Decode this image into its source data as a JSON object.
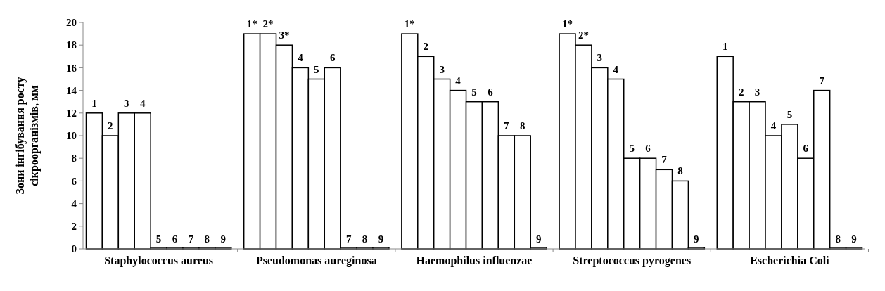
{
  "chart_data": {
    "type": "bar",
    "ylabel": "Зони інгібування росту сікроорганізмів, мм",
    "categories": [
      "Staphylococcus aureus",
      "Pseudomonas aureginosa",
      "Haemophilus influenzae",
      "Streptococcus pyrogenes",
      "Escherichia Coli"
    ],
    "ylim": [
      0,
      20
    ],
    "yticks": [
      0,
      2,
      4,
      6,
      8,
      10,
      12,
      14,
      16,
      18,
      20
    ],
    "grid": false,
    "series": [
      {
        "color": "#ffffff",
        "values": [
          12,
          19,
          19,
          19,
          17
        ]
      },
      {
        "color": "#ffffff",
        "values": [
          10,
          19,
          17,
          18,
          13
        ]
      },
      {
        "color": "#ffffff",
        "values": [
          12,
          18,
          15,
          16,
          13
        ]
      },
      {
        "color": "#ffffff",
        "values": [
          12,
          16,
          14,
          15,
          10
        ]
      },
      {
        "color": "#ffffff",
        "values": [
          0,
          15,
          13,
          8,
          11
        ]
      },
      {
        "color": "#ffffff",
        "values": [
          0,
          16,
          13,
          8,
          8
        ]
      },
      {
        "color": "#ffffff",
        "values": [
          0,
          0,
          10,
          7,
          14
        ]
      },
      {
        "color": "#ffffff",
        "values": [
          0,
          0,
          10,
          6,
          0
        ]
      },
      {
        "color": "#ffffff",
        "values": [
          0,
          0,
          0,
          0,
          0
        ]
      }
    ],
    "annotations": [
      "1",
      "2",
      "3",
      "4",
      "5",
      "6",
      "7",
      "8",
      "9",
      "1*",
      "2*",
      "3*",
      "4",
      "5",
      "6",
      "7",
      "8",
      "9",
      "1*",
      "2",
      "3",
      "4",
      "5",
      "6",
      "7",
      "8",
      "9",
      "1*",
      "2*",
      "3",
      "4",
      "5",
      "6",
      "7",
      "8",
      "9",
      "1",
      "2",
      "3",
      "4",
      "5",
      "6",
      "7",
      "8",
      "9"
    ]
  }
}
